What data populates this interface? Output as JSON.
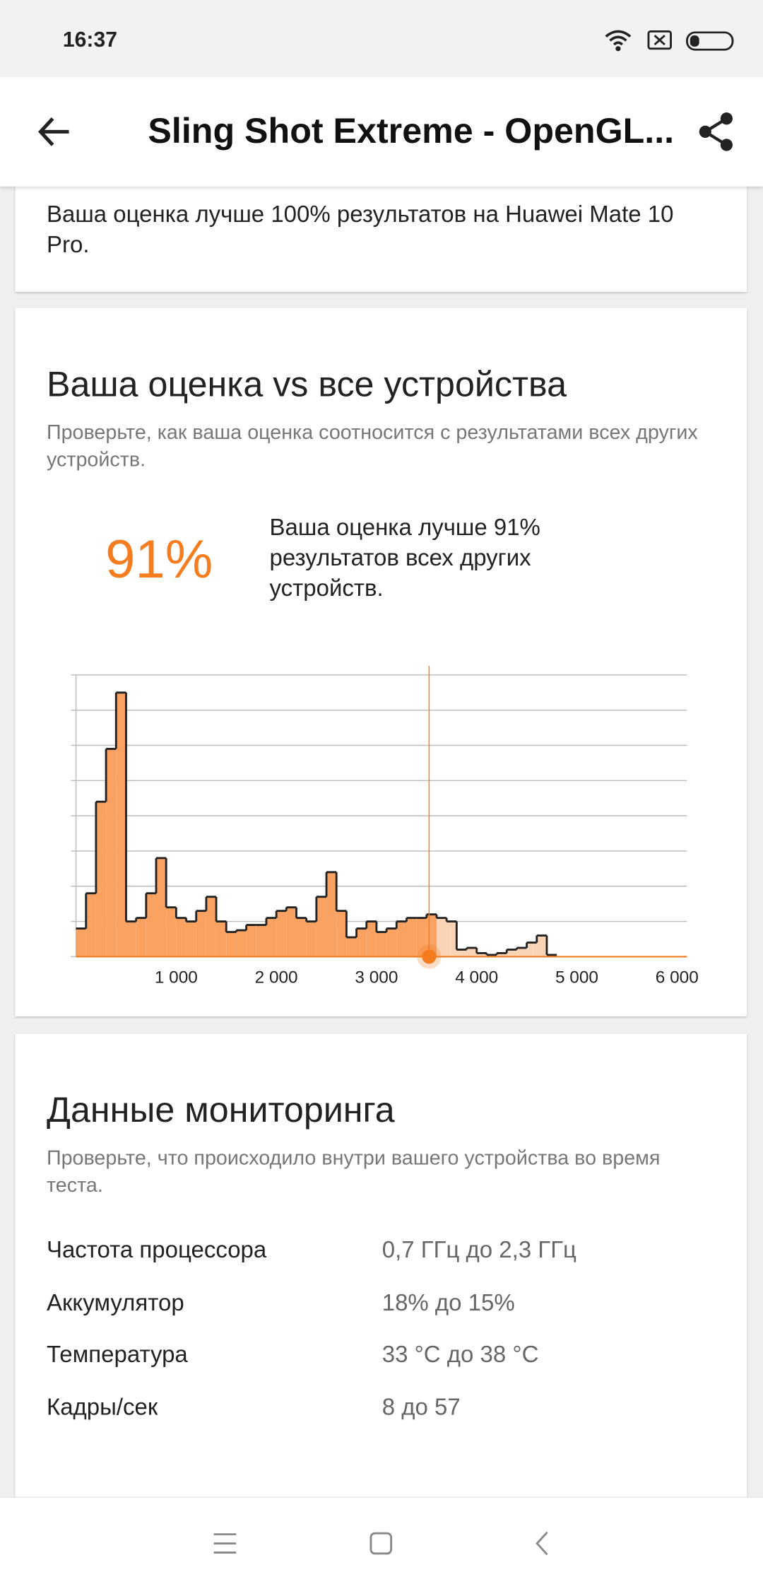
{
  "status_bar": {
    "time": "16:37"
  },
  "app_bar": {
    "title": "Sling Shot Extreme - OpenGL..."
  },
  "summary": {
    "text": "Ваша оценка лучше 100% результатов на Huawei Mate 10 Pro."
  },
  "comparison": {
    "title": "Ваша оценка vs все устройства",
    "subtitle": "Проверьте, как ваша оценка соотносится с результатами всех других устройств.",
    "percent": "91%",
    "description": "Ваша оценка лучше 91% результатов всех других устройств.",
    "chart": {
      "type": "histogram",
      "bins": [
        0,
        100,
        200,
        300,
        400,
        500,
        600,
        700,
        800,
        900,
        1000,
        1100,
        1200,
        1300,
        1400,
        1500,
        1600,
        1700,
        1800,
        1900,
        2000,
        2100,
        2200,
        2300,
        2400,
        2500,
        2600,
        2700,
        2800,
        2900,
        3000,
        3100,
        3200,
        3300,
        3400,
        3500,
        3600,
        3700,
        3800,
        3900,
        4000,
        4100,
        4200,
        4300,
        4400,
        4500,
        4600,
        4700,
        4800
      ],
      "counts": [
        0.8,
        1.8,
        4.4,
        5.9,
        7.5,
        1.0,
        1.1,
        1.8,
        2.8,
        1.4,
        1.1,
        1.0,
        1.3,
        1.7,
        1.0,
        0.7,
        0.75,
        0.9,
        0.9,
        1.1,
        1.3,
        1.4,
        1.1,
        1.0,
        1.7,
        2.4,
        1.3,
        0.55,
        0.8,
        1.0,
        0.7,
        0.8,
        1.0,
        1.1,
        1.1,
        1.2,
        1.1,
        1.0,
        0.2,
        0.25,
        0.1,
        0.05,
        0.1,
        0.2,
        0.25,
        0.4,
        0.6,
        0.05
      ],
      "xlim": [
        0,
        6100
      ],
      "xticks": [
        {
          "value": 1000,
          "label": "1 000"
        },
        {
          "value": 2000,
          "label": "2 000"
        },
        {
          "value": 3000,
          "label": "3 000"
        },
        {
          "value": 4000,
          "label": "4 000"
        },
        {
          "value": 5000,
          "label": "5 000"
        },
        {
          "value": 6000,
          "label": "6 000"
        }
      ],
      "ylim": [
        0,
        8
      ],
      "yticks": [
        0,
        1,
        2,
        3,
        4,
        5,
        6,
        7,
        8
      ],
      "grid": true,
      "score": 3525,
      "color_below": "#f9a261",
      "color_above": "#fbd4b6",
      "marker_color": "#f57c1f"
    }
  },
  "monitoring": {
    "title": "Данные мониторинга",
    "subtitle": "Проверьте, что происходило внутри вашего устройства во время теста.",
    "rows": [
      {
        "label": "Частота процессора",
        "value": "0,7 ГГц до 2,3 ГГц"
      },
      {
        "label": "Аккумулятор",
        "value": "18% до 15%"
      },
      {
        "label": "Температура",
        "value": "33 °C до 38 °C"
      },
      {
        "label": "Кадры/сек",
        "value": "8 до 57"
      }
    ]
  }
}
